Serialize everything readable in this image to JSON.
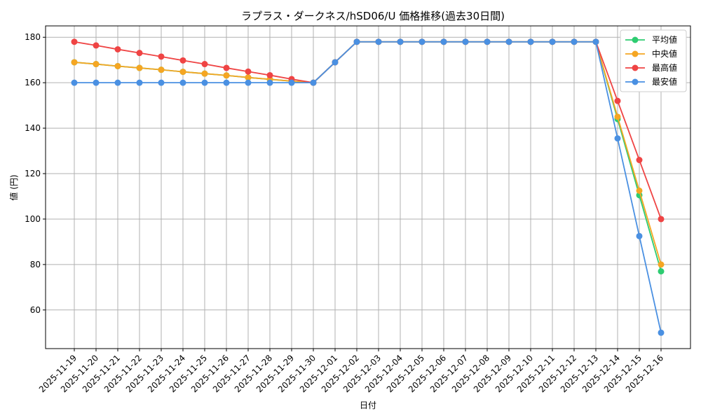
{
  "chart_data": {
    "type": "line",
    "title": "ラプラス・ダークネス/hSD06/U 価格推移(過去30日間)",
    "xlabel": "日付",
    "ylabel": "値 (円)",
    "ylim": [
      43,
      185
    ],
    "yticks": [
      60,
      80,
      100,
      120,
      140,
      160,
      180
    ],
    "grid": true,
    "legend_position": "top-right",
    "categories": [
      "2025-11-19",
      "2025-11-20",
      "2025-11-21",
      "2025-11-22",
      "2025-11-23",
      "2025-11-24",
      "2025-11-25",
      "2025-11-26",
      "2025-11-27",
      "2025-11-28",
      "2025-11-29",
      "2025-11-30",
      "2025-12-01",
      "2025-12-02",
      "2025-12-03",
      "2025-12-04",
      "2025-12-05",
      "2025-12-06",
      "2025-12-07",
      "2025-12-08",
      "2025-12-09",
      "2025-12-10",
      "2025-12-11",
      "2025-12-12",
      "2025-12-13",
      "2025-12-14",
      "2025-12-15",
      "2025-12-16"
    ],
    "series": [
      {
        "name": "平均値",
        "color": "#2ecc71",
        "values": [
          169,
          168.2,
          167.3,
          166.5,
          165.7,
          164.8,
          164,
          163.2,
          162.3,
          161.5,
          160.7,
          160,
          169,
          178,
          178,
          178,
          178,
          178,
          178,
          178,
          178,
          178,
          178,
          178,
          178,
          144,
          110.5,
          77
        ]
      },
      {
        "name": "中央値",
        "color": "#f5a623",
        "values": [
          169,
          168.2,
          167.3,
          166.5,
          165.7,
          164.8,
          164,
          163.2,
          162.3,
          161.5,
          160.7,
          160,
          169,
          178,
          178,
          178,
          178,
          178,
          178,
          178,
          178,
          178,
          178,
          178,
          178,
          145,
          112.5,
          80
        ]
      },
      {
        "name": "最高値",
        "color": "#ef4444",
        "values": [
          178,
          176.4,
          174.7,
          173.1,
          171.5,
          169.8,
          168.2,
          166.5,
          164.9,
          163.3,
          161.6,
          160,
          169,
          178,
          178,
          178,
          178,
          178,
          178,
          178,
          178,
          178,
          178,
          178,
          178,
          152,
          126,
          100
        ]
      },
      {
        "name": "最安値",
        "color": "#4a90e2",
        "values": [
          160,
          160,
          160,
          160,
          160,
          160,
          160,
          160,
          160,
          160,
          160,
          160,
          169,
          178,
          178,
          178,
          178,
          178,
          178,
          178,
          178,
          178,
          178,
          178,
          178,
          135.5,
          92.5,
          50
        ]
      }
    ]
  }
}
